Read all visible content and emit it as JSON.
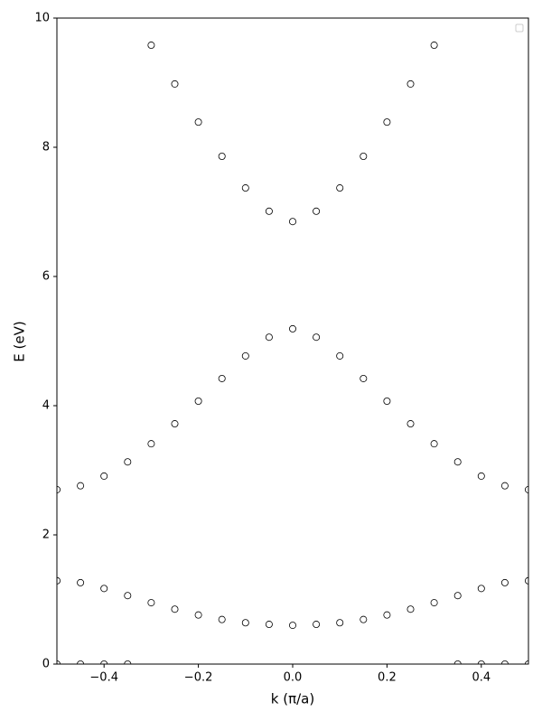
{
  "chart_data": {
    "type": "scatter",
    "xlabel": "k (π/a)",
    "ylabel": "E (eV)",
    "xlim": [
      -0.5,
      0.5
    ],
    "ylim": [
      0,
      10
    ],
    "xticks": [
      {
        "value": -0.4,
        "label": "−0.4"
      },
      {
        "value": -0.2,
        "label": "−0.2"
      },
      {
        "value": 0,
        "label": "0.0"
      },
      {
        "value": 0.2,
        "label": "0.2"
      },
      {
        "value": 0.4,
        "label": "0.4"
      }
    ],
    "yticks": [
      0,
      2,
      4,
      6,
      8,
      10
    ],
    "grid": false,
    "legend": "upper right",
    "marker": "hollow",
    "series": [
      {
        "color": "#000000",
        "x": [
          -0.5,
          -0.45,
          -0.4,
          -0.35,
          0.35,
          0.4,
          0.45,
          0.5
        ],
        "values": [
          0,
          0,
          0,
          0,
          0,
          0,
          0,
          0
        ]
      },
      {
        "color": "#000000",
        "x": [
          -0.5,
          -0.45,
          -0.4,
          -0.35,
          -0.3,
          -0.25,
          -0.2,
          -0.15,
          -0.1,
          -0.05,
          0,
          0.05,
          0.1,
          0.15,
          0.2,
          0.25,
          0.3,
          0.35,
          0.4,
          0.45,
          0.5
        ],
        "values": [
          1.29,
          1.26,
          1.17,
          1.06,
          0.95,
          0.85,
          0.76,
          0.69,
          0.64,
          0.615,
          0.6,
          0.615,
          0.64,
          0.69,
          0.76,
          0.85,
          0.95,
          1.06,
          1.17,
          1.26,
          1.29
        ]
      },
      {
        "color": "#000000",
        "x": [
          -0.5,
          -0.45,
          -0.4,
          -0.35,
          -0.3,
          -0.25,
          -0.2,
          -0.15,
          -0.1,
          -0.05,
          0,
          0.05,
          0.1,
          0.15,
          0.2,
          0.25,
          0.3,
          0.35,
          0.4,
          0.45,
          0.5
        ],
        "values": [
          2.7,
          2.76,
          2.91,
          3.13,
          3.41,
          3.72,
          4.07,
          4.42,
          4.77,
          5.06,
          5.19,
          5.06,
          4.77,
          4.42,
          4.07,
          3.72,
          3.41,
          3.13,
          2.91,
          2.76,
          2.7
        ]
      },
      {
        "color": "#000000",
        "x": [
          -0.3,
          -0.25,
          -0.2,
          -0.15,
          -0.1,
          -0.05,
          0,
          0.05,
          0.1,
          0.15,
          0.2,
          0.25,
          0.3
        ],
        "values": [
          9.58,
          8.98,
          8.39,
          7.86,
          7.37,
          7.01,
          6.85,
          7.01,
          7.37,
          7.86,
          8.39,
          8.98,
          9.58
        ]
      }
    ]
  }
}
